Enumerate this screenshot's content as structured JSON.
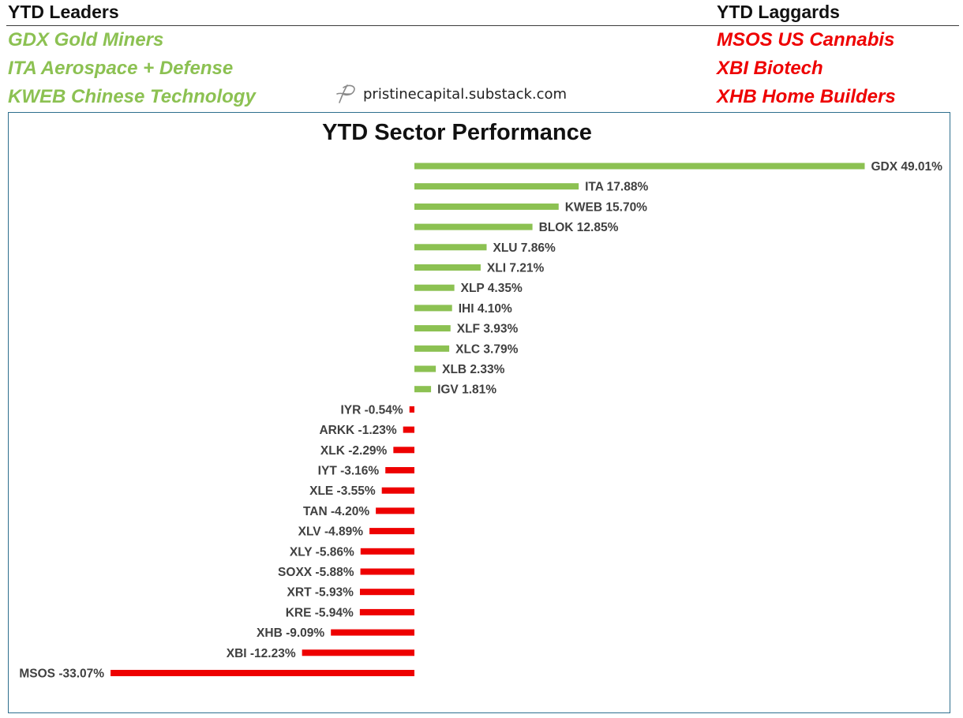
{
  "header": {
    "leaders_title": "YTD Leaders",
    "laggards_title": "YTD Laggards",
    "leaders": [
      "GDX Gold Miners",
      "ITA Aerospace + Defense",
      "KWEB Chinese Technology"
    ],
    "laggards": [
      "MSOS US Cannabis",
      "XBI Biotech",
      "XHB Home Builders"
    ],
    "watermark": "pristinecapital.substack.com"
  },
  "colors": {
    "positive": "#8cc152",
    "negative": "#ee0000",
    "frame": "#2e6f8e",
    "label": "#404040"
  },
  "chart_data": {
    "type": "bar",
    "orientation": "horizontal",
    "title": "YTD Sector Performance",
    "categories": [
      "GDX",
      "ITA",
      "KWEB",
      "BLOK",
      "XLU",
      "XLI",
      "XLP",
      "IHI",
      "XLF",
      "XLC",
      "XLB",
      "IGV",
      "IYR",
      "ARKK",
      "XLK",
      "IYT",
      "XLE",
      "TAN",
      "XLV",
      "XLY",
      "SOXX",
      "XRT",
      "KRE",
      "XHB",
      "XBI",
      "MSOS"
    ],
    "values": [
      49.01,
      17.88,
      15.7,
      12.85,
      7.86,
      7.21,
      4.35,
      4.1,
      3.93,
      3.79,
      2.33,
      1.81,
      -0.54,
      -1.23,
      -2.29,
      -3.16,
      -3.55,
      -4.2,
      -4.89,
      -5.86,
      -5.88,
      -5.93,
      -5.94,
      -9.09,
      -12.23,
      -33.07
    ],
    "labels": [
      "GDX 49.01%",
      "ITA 17.88%",
      "KWEB 15.70%",
      "BLOK 12.85%",
      "XLU 7.86%",
      "XLI 7.21%",
      "XLP 4.35%",
      "IHI 4.10%",
      "XLF 3.93%",
      "XLC 3.79%",
      "XLB 2.33%",
      "IGV 1.81%",
      "IYR -0.54%",
      "ARKK -1.23%",
      "XLK -2.29%",
      "IYT -3.16%",
      "XLE -3.55%",
      "TAN -4.20%",
      "XLV -4.89%",
      "XLY -5.86%",
      "SOXX -5.88%",
      "XRT -5.93%",
      "KRE -5.94%",
      "XHB -9.09%",
      "XBI -12.23%",
      "MSOS -33.07%"
    ],
    "xlim": [
      -33.07,
      49.01
    ],
    "grid": false,
    "legend": "none"
  }
}
